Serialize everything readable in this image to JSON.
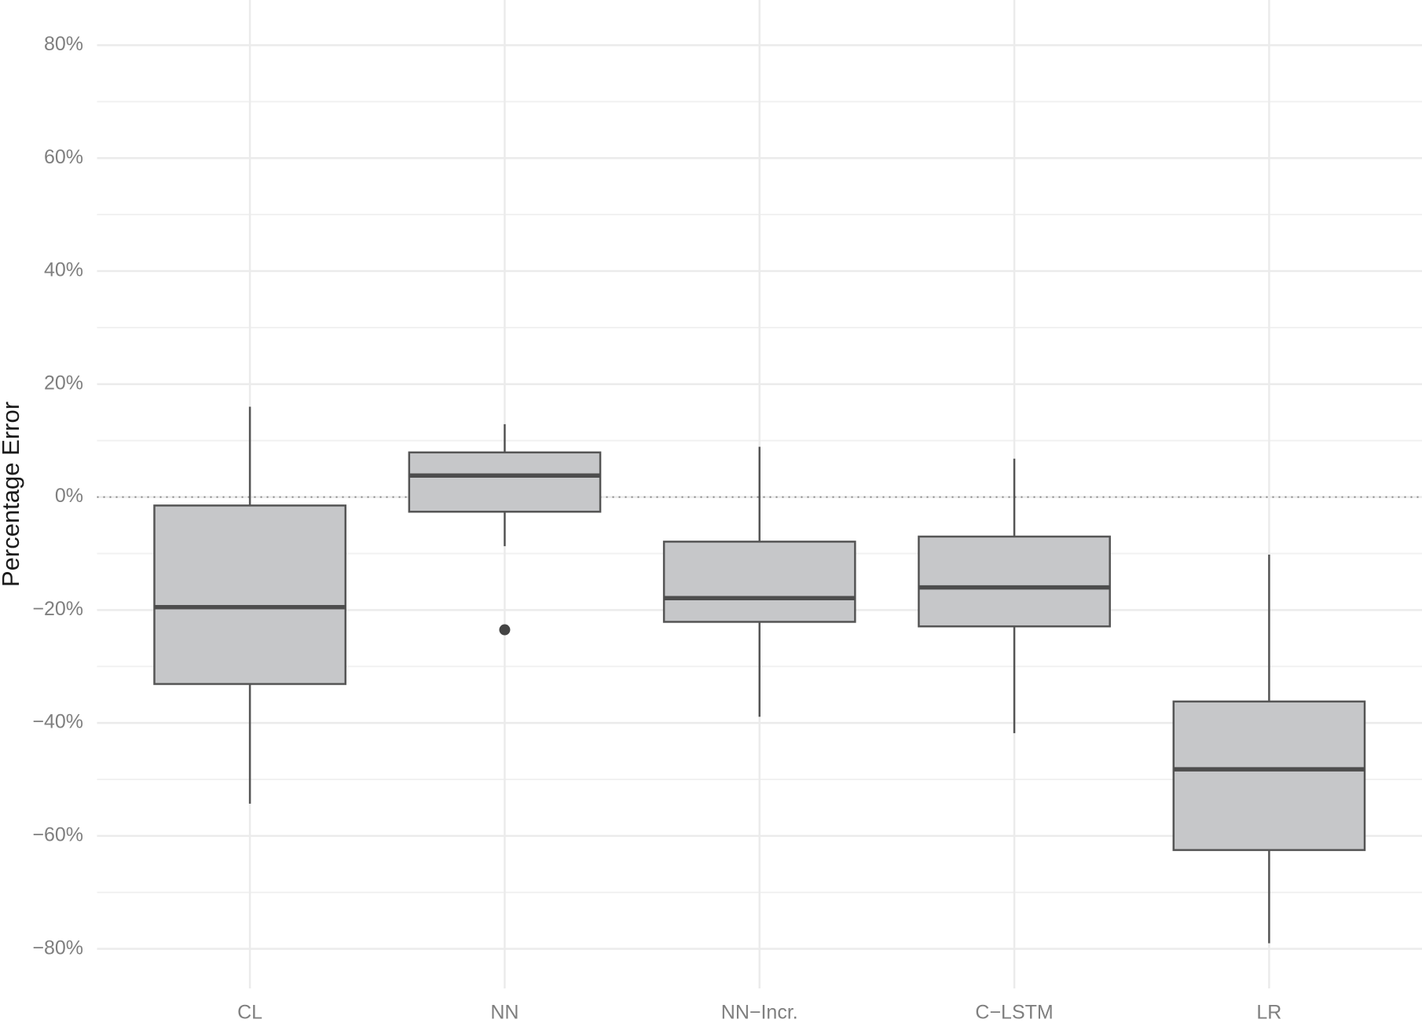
{
  "chart_data": {
    "type": "box",
    "y_label": "Percentage Error",
    "categories": [
      "CL",
      "NN",
      "NN−Incr.",
      "C−LSTM",
      "LR"
    ],
    "whisker_low": [
      -54.3,
      -8.7,
      -38.9,
      -41.8,
      -79.0
    ],
    "q1": [
      -33.1,
      -2.6,
      -22.1,
      -22.9,
      -62.5
    ],
    "median": [
      -19.5,
      3.8,
      -17.9,
      -16.0,
      -48.2
    ],
    "q3": [
      -1.5,
      7.9,
      -7.9,
      -7.0,
      -36.2
    ],
    "whisker_high": [
      16.0,
      12.9,
      8.9,
      6.8,
      -10.2
    ],
    "outliers": [
      [],
      [
        -23.5
      ],
      [],
      [],
      []
    ],
    "color": "#c6c7c9",
    "ylim": [
      -87,
      88
    ],
    "yticks": [
      {
        "value": -80,
        "label": "−80%"
      },
      {
        "value": -60,
        "label": "−60%"
      },
      {
        "value": -40,
        "label": "−40%"
      },
      {
        "value": -20,
        "label": "−20%"
      },
      {
        "value": 0,
        "label": "0%"
      },
      {
        "value": 20,
        "label": "20%"
      },
      {
        "value": 40,
        "label": "40%"
      },
      {
        "value": 60,
        "label": "60%"
      },
      {
        "value": 80,
        "label": "80%"
      }
    ],
    "minor_yticks": [
      -70,
      -50,
      -30,
      -10,
      10,
      30,
      50,
      70
    ],
    "hline": 0,
    "grid": true
  }
}
